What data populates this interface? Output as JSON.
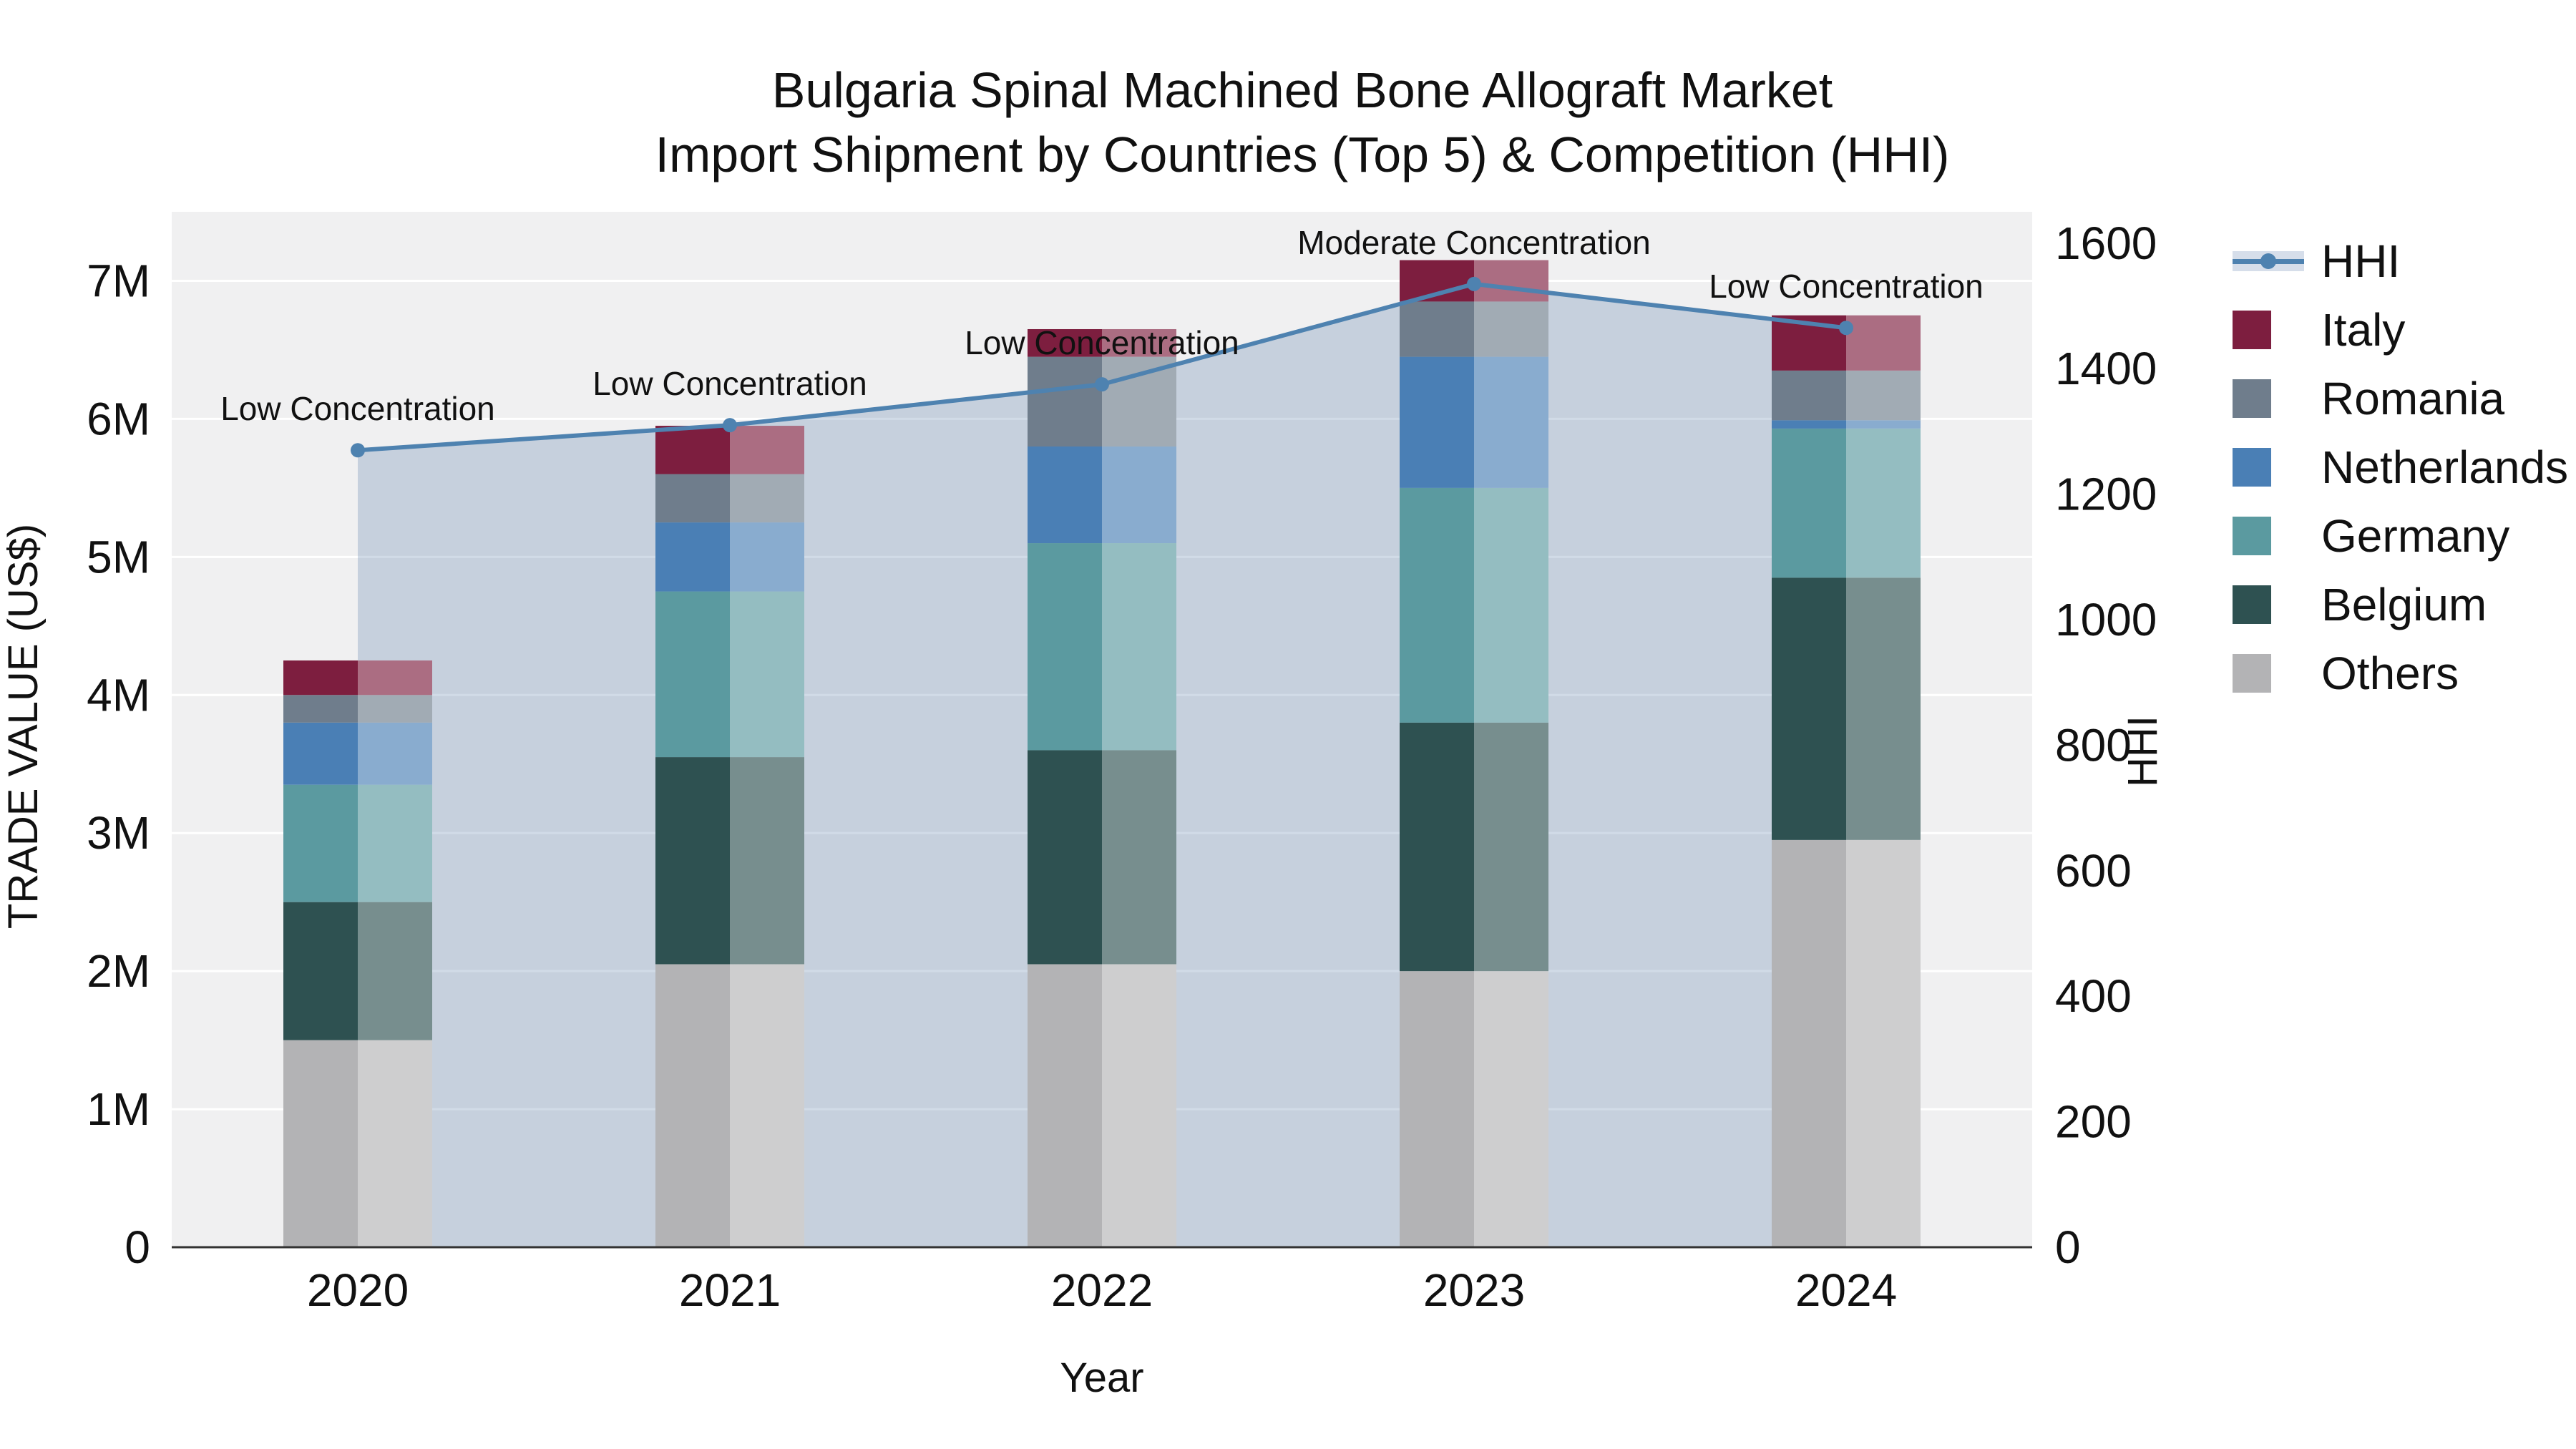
{
  "title": {
    "line1": "Bulgaria Spinal Machined Bone Allograft Market",
    "line2": "Import Shipment by Countries (Top 5) & Competition (HHI)"
  },
  "axes": {
    "y_left_title": "TRADE VALUE (US$)",
    "y_right_title": "HHI",
    "x_title": "Year"
  },
  "chart_data": {
    "type": "bar",
    "stacked": true,
    "unit": "US$ millions (left axis), HHI index (right axis)",
    "categories": [
      "2020",
      "2021",
      "2022",
      "2023",
      "2024"
    ],
    "series": [
      {
        "name": "Others",
        "color": "#b3b3b5",
        "values": [
          1.5,
          2.05,
          2.05,
          2.0,
          2.95
        ]
      },
      {
        "name": "Belgium",
        "color": "#2e5151",
        "values": [
          1.0,
          1.5,
          1.55,
          1.8,
          1.9
        ]
      },
      {
        "name": "Germany",
        "color": "#5b9aa0",
        "values": [
          0.85,
          1.2,
          1.5,
          1.7,
          1.08
        ]
      },
      {
        "name": "Netherlands",
        "color": "#4a7fb5",
        "values": [
          0.45,
          0.5,
          0.7,
          0.95,
          0.06
        ]
      },
      {
        "name": "Romania",
        "color": "#6f7d8c",
        "values": [
          0.2,
          0.35,
          0.65,
          0.4,
          0.36
        ]
      },
      {
        "name": "Italy",
        "color": "#7d1e3f",
        "values": [
          0.25,
          0.35,
          0.2,
          0.3,
          0.4
        ]
      }
    ],
    "line_series": {
      "name": "HHI",
      "color": "#4e82b0",
      "fill": "rgba(90,125,170,0.28)",
      "values": [
        1270,
        1310,
        1375,
        1535,
        1465
      ]
    },
    "annotations": [
      "Low Concentration",
      "Low Concentration",
      "Low Concentration",
      "Moderate Concentration",
      "Low Concentration"
    ],
    "left_axis": {
      "max": 7.5,
      "ticks": [
        0,
        1,
        2,
        3,
        4,
        5,
        6,
        7
      ],
      "tick_labels": [
        "0",
        "1M",
        "2M",
        "3M",
        "4M",
        "5M",
        "6M",
        "7M"
      ]
    },
    "right_axis": {
      "max": 1650,
      "ticks": [
        0,
        200,
        400,
        600,
        800,
        1000,
        1200,
        1400,
        1600
      ]
    },
    "legend": [
      {
        "name": "HHI",
        "color": "#4e82b0",
        "type": "line",
        "band": "rgba(90,125,170,0.25)"
      },
      {
        "name": "Italy",
        "color": "#7d1e3f",
        "type": "square"
      },
      {
        "name": "Romania",
        "color": "#6f7d8c",
        "type": "square"
      },
      {
        "name": "Netherlands",
        "color": "#4a7fb5",
        "type": "square"
      },
      {
        "name": "Germany",
        "color": "#5b9aa0",
        "type": "square"
      },
      {
        "name": "Belgium",
        "color": "#2e5151",
        "type": "square"
      },
      {
        "name": "Others",
        "color": "#b3b3b5",
        "type": "square"
      }
    ]
  }
}
